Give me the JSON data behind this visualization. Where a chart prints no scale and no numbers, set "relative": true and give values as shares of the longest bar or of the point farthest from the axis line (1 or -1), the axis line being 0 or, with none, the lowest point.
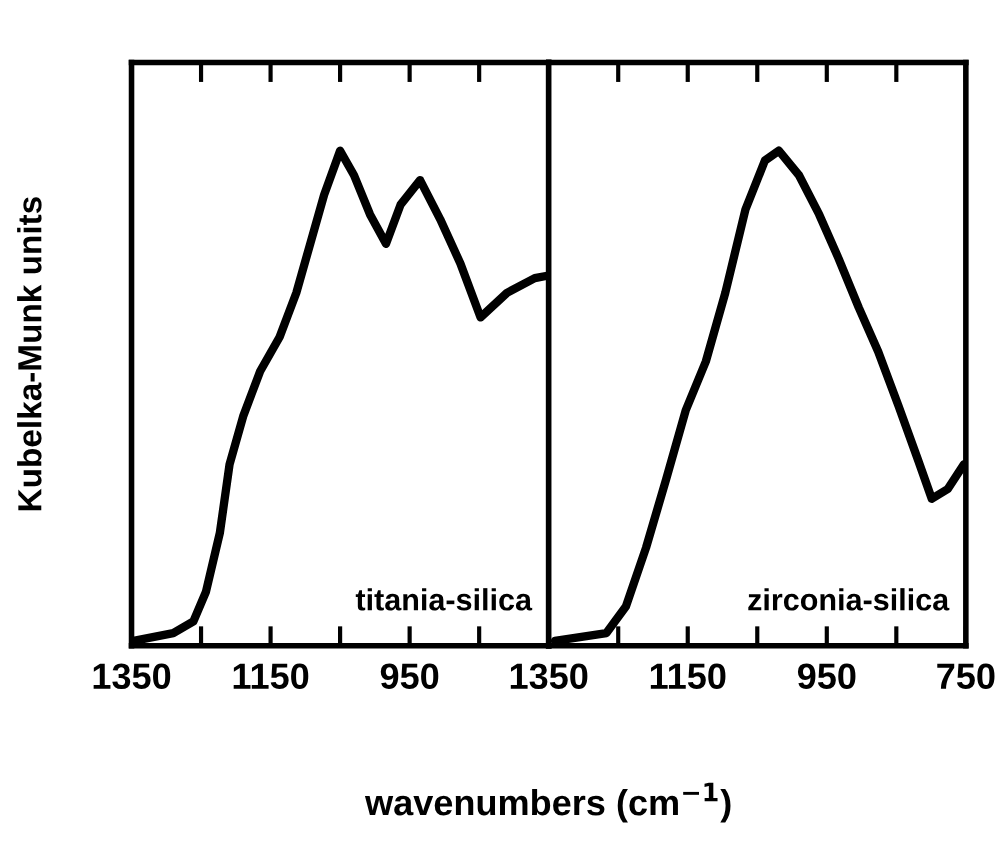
{
  "chart_data": [
    {
      "type": "line",
      "relative": true,
      "ylabel": "Kubelka-Munk units",
      "xlabel": "wavenumbers (cm$^{−1}$)",
      "annotations": [
        "titania-silica"
      ],
      "tick_labels": "x",
      "xlim": [
        1350,
        750
      ],
      "xticks": [
        1350,
        {
          "value": 1250,
          "label": null
        },
        1150,
        {
          "value": 1050,
          "label": null
        },
        950,
        {
          "value": 850,
          "label": null
        },
        {
          "value": 750,
          "label": null
        }
      ],
      "grid": false,
      "series": [
        {
          "color": "#000000",
          "x": [
            1347,
            1290,
            1261,
            1243,
            1223,
            1209,
            1189,
            1165,
            1137,
            1113,
            1093,
            1073,
            1050,
            1030,
            1007,
            984,
            963,
            935,
            906,
            877,
            848,
            810,
            770,
            752
          ],
          "values": [
            0,
            0.016,
            0.04,
            0.1,
            0.22,
            0.36,
            0.46,
            0.55,
            0.62,
            0.71,
            0.81,
            0.91,
            1.0,
            0.95,
            0.87,
            0.81,
            0.89,
            0.94,
            0.86,
            0.77,
            0.66,
            0.71,
            0.74,
            0.745
          ]
        }
      ]
    },
    {
      "type": "line",
      "relative": true,
      "annotations": [
        "zirconia-silica"
      ],
      "tick_labels": "x",
      "xlim": [
        1350,
        750
      ],
      "xticks": [
        1350,
        {
          "value": 1250,
          "label": null
        },
        1150,
        {
          "value": 1050,
          "label": null
        },
        950,
        {
          "value": 850,
          "label": null
        },
        750
      ],
      "grid": false,
      "series": [
        {
          "color": "#000000",
          "x": [
            1341,
            1267,
            1239,
            1210,
            1181,
            1153,
            1124,
            1096,
            1067,
            1039,
            1019,
            990,
            961,
            933,
            904,
            876,
            847,
            819,
            799,
            776,
            753
          ],
          "values": [
            0,
            0.016,
            0.07,
            0.19,
            0.33,
            0.47,
            0.57,
            0.71,
            0.88,
            0.98,
            1.0,
            0.95,
            0.87,
            0.78,
            0.68,
            0.59,
            0.48,
            0.37,
            0.29,
            0.31,
            0.36
          ]
        }
      ]
    }
  ]
}
